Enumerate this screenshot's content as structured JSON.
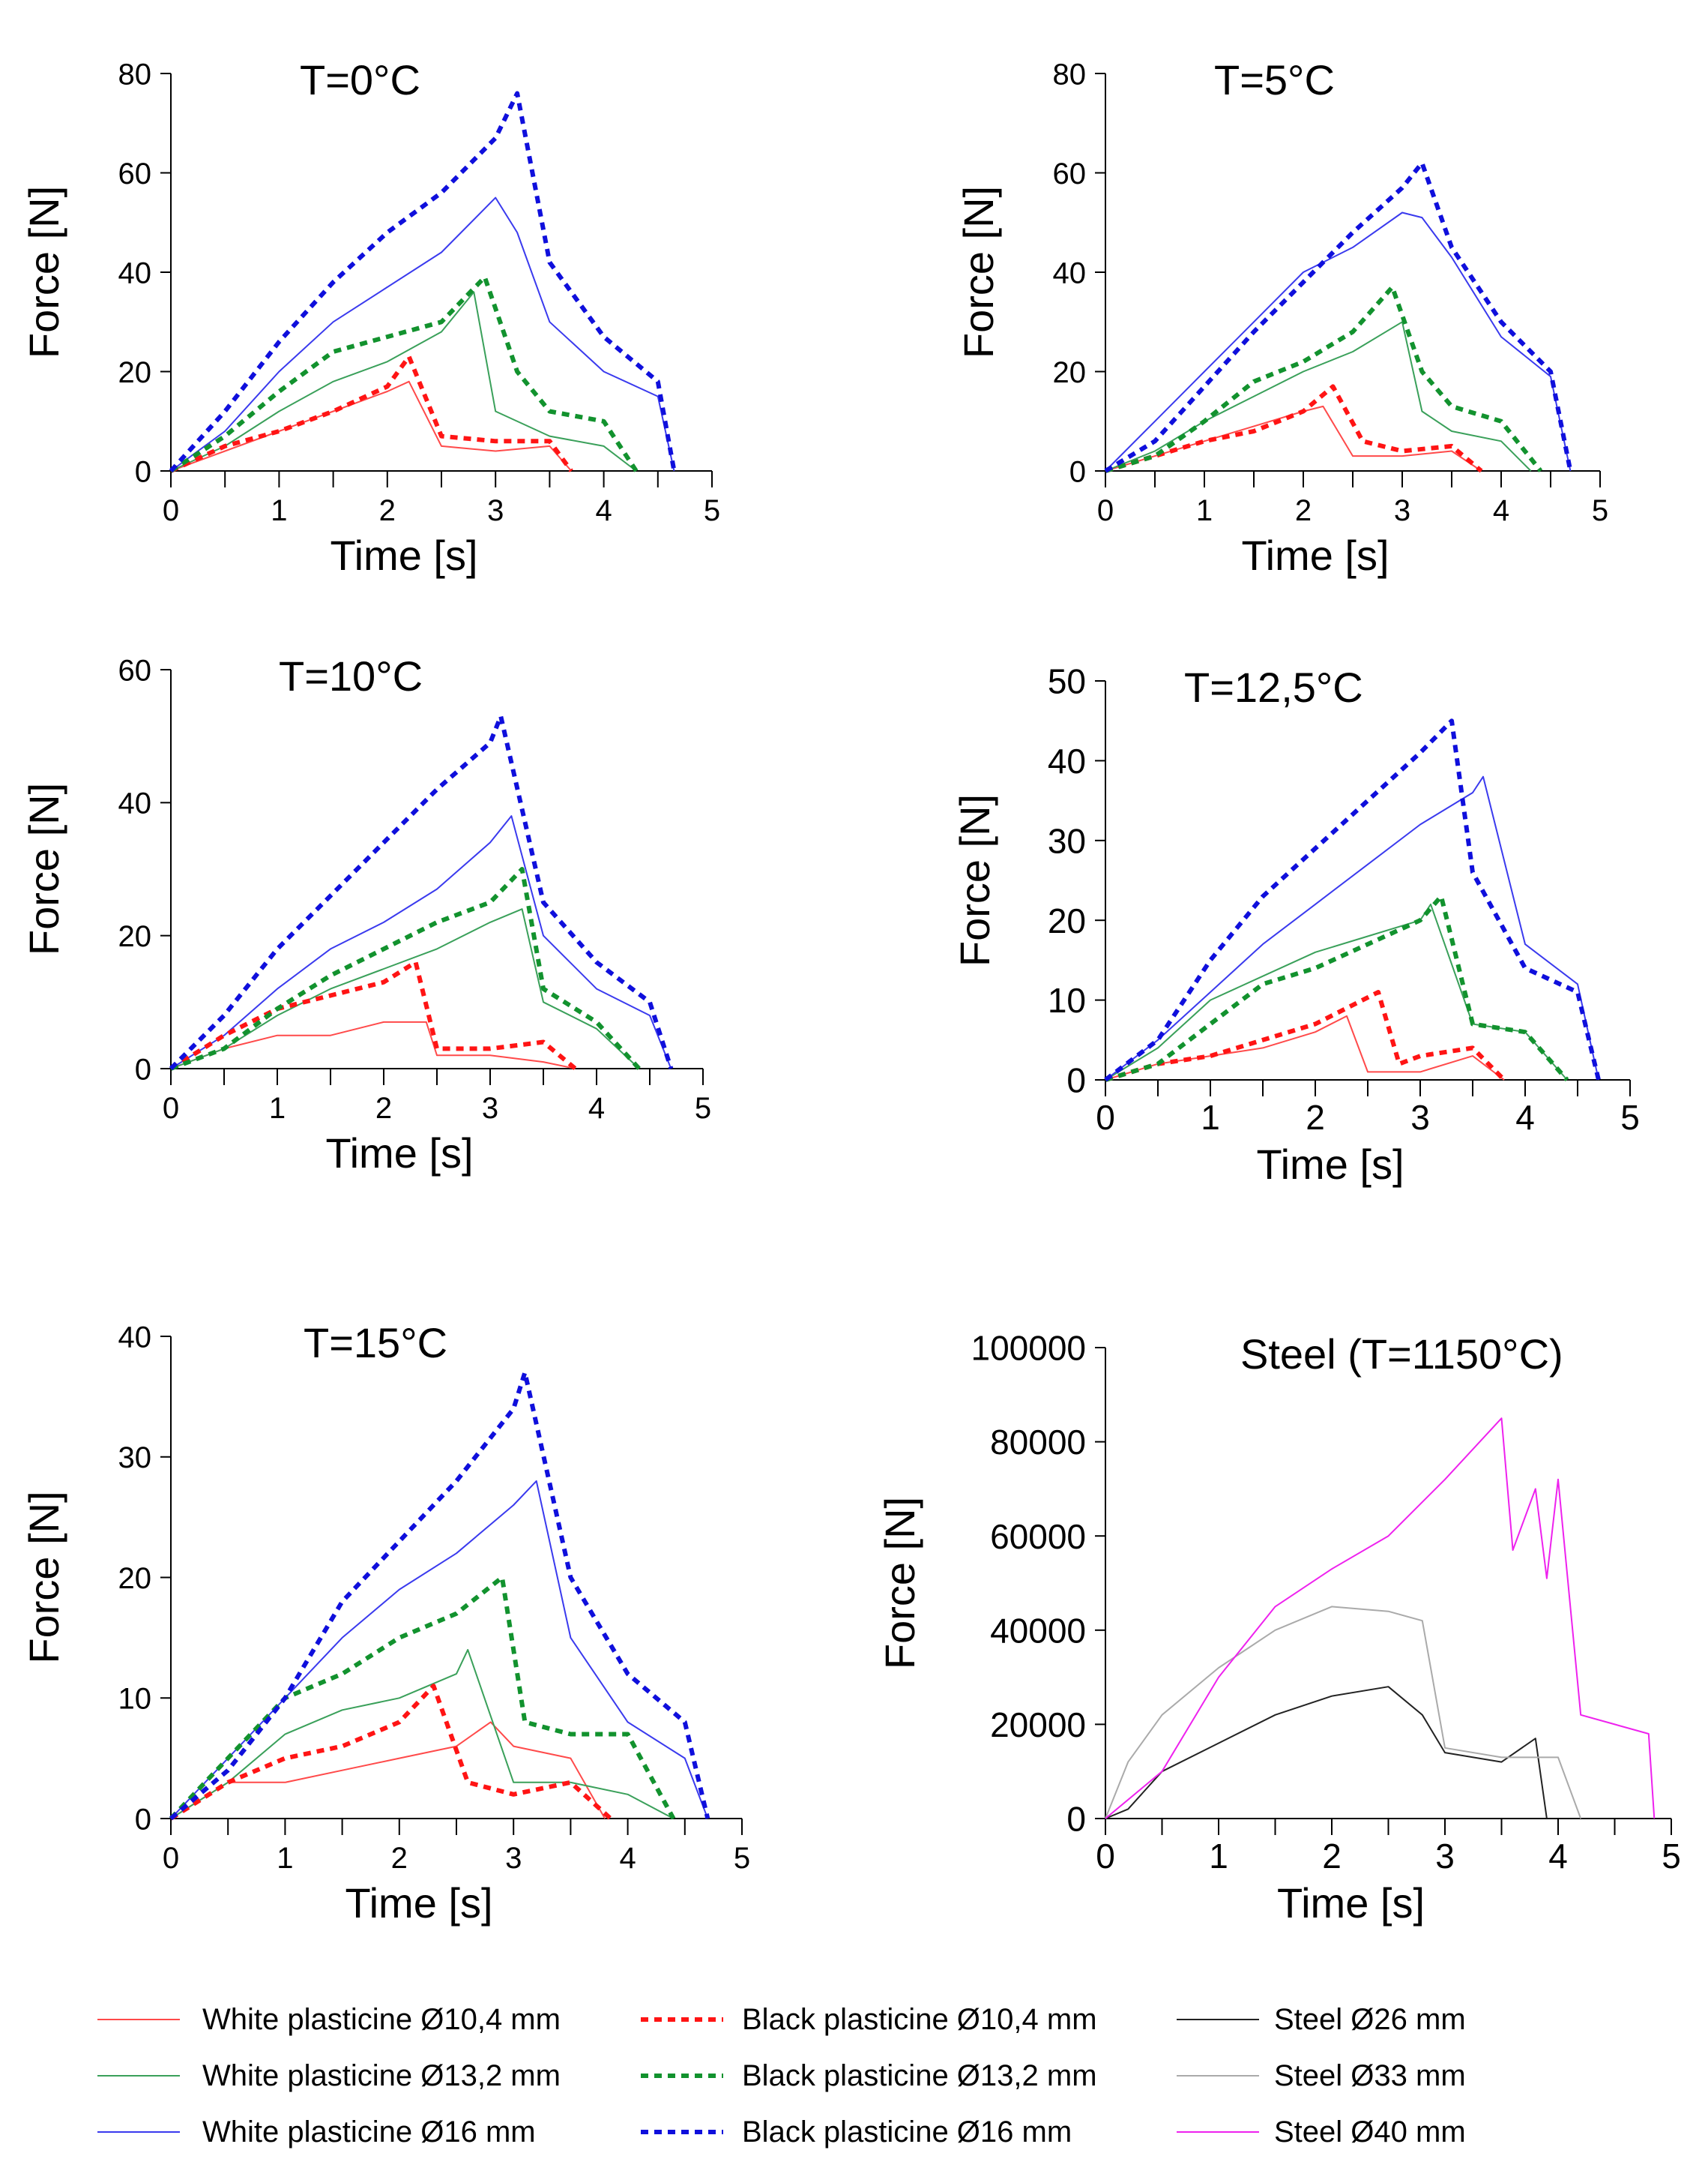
{
  "colors": {
    "white_10": "#ff4a4a",
    "white_13": "#3aa05a",
    "white_16": "#3a3aee",
    "black_10": "#ff1414",
    "black_13": "#12922e",
    "black_16": "#0f0fdc",
    "steel_26": "#222222",
    "steel_33": "#aaaaaa",
    "steel_40": "#ee22ee"
  },
  "legend": [
    {
      "id": "white_10",
      "label": "White plasticine Ø10,4 mm",
      "style": "solid"
    },
    {
      "id": "white_13",
      "label": "White plasticine Ø13,2 mm",
      "style": "solid"
    },
    {
      "id": "white_16",
      "label": "White plasticine Ø16 mm",
      "style": "solid"
    },
    {
      "id": "black_10",
      "label": "Black plasticine Ø10,4 mm",
      "style": "dashed"
    },
    {
      "id": "black_13",
      "label": "Black plasticine Ø13,2 mm",
      "style": "dashed"
    },
    {
      "id": "black_16",
      "label": "Black plasticine Ø16 mm",
      "style": "dashed"
    },
    {
      "id": "steel_26",
      "label": "Steel Ø26 mm",
      "style": "solid"
    },
    {
      "id": "steel_33",
      "label": "Steel Ø33 mm",
      "style": "solid"
    },
    {
      "id": "steel_40",
      "label": "Steel Ø40 mm",
      "style": "solid"
    }
  ],
  "chart_data": [
    {
      "type": "line",
      "title": "T=0°C",
      "xlabel": "Time [s]",
      "ylabel": "Force [N]",
      "xlim": [
        0,
        5
      ],
      "ylim": [
        0,
        80
      ],
      "xticks": [
        0,
        1,
        2,
        3,
        4,
        5
      ],
      "yticks": [
        0,
        20,
        40,
        60,
        80
      ],
      "series": [
        {
          "id": "white_10",
          "x": [
            0,
            0.5,
            1,
            1.5,
            2,
            2.2,
            2.5,
            3,
            3.5,
            3.7
          ],
          "y": [
            0,
            4,
            8,
            12,
            16,
            18,
            5,
            4,
            5,
            0
          ]
        },
        {
          "id": "white_13",
          "x": [
            0,
            0.5,
            1,
            1.5,
            2,
            2.5,
            2.8,
            3,
            3.5,
            4,
            4.3
          ],
          "y": [
            0,
            5,
            12,
            18,
            22,
            28,
            36,
            12,
            7,
            5,
            0
          ]
        },
        {
          "id": "white_16",
          "x": [
            0,
            0.5,
            1,
            1.5,
            2,
            2.5,
            3,
            3.2,
            3.5,
            4,
            4.5,
            4.65
          ],
          "y": [
            0,
            8,
            20,
            30,
            37,
            44,
            55,
            48,
            30,
            20,
            15,
            0
          ]
        },
        {
          "id": "black_10",
          "x": [
            0,
            0.5,
            1,
            1.5,
            2,
            2.2,
            2.5,
            3,
            3.5,
            3.7
          ],
          "y": [
            0,
            5,
            8,
            12,
            17,
            23,
            7,
            6,
            6,
            0
          ]
        },
        {
          "id": "black_13",
          "x": [
            0,
            0.5,
            1,
            1.5,
            2,
            2.5,
            2.9,
            3.2,
            3.5,
            4,
            4.3
          ],
          "y": [
            0,
            7,
            16,
            24,
            27,
            30,
            39,
            20,
            12,
            10,
            0
          ]
        },
        {
          "id": "black_16",
          "x": [
            0,
            0.5,
            1,
            1.5,
            2,
            2.5,
            3,
            3.2,
            3.5,
            4,
            4.5,
            4.65
          ],
          "y": [
            0,
            12,
            26,
            38,
            48,
            56,
            67,
            76,
            42,
            27,
            18,
            0
          ]
        }
      ]
    },
    {
      "type": "line",
      "title": "T=5°C",
      "xlabel": "Time [s]",
      "ylabel": "Force [N]",
      "xlim": [
        0,
        5
      ],
      "ylim": [
        0,
        80
      ],
      "xticks": [
        0,
        1,
        2,
        3,
        4,
        5
      ],
      "yticks": [
        0,
        20,
        40,
        60,
        80
      ],
      "series": [
        {
          "id": "white_10",
          "x": [
            0,
            0.5,
            1,
            1.5,
            2,
            2.2,
            2.5,
            3,
            3.5,
            3.8
          ],
          "y": [
            0,
            3,
            6,
            9,
            12,
            13,
            3,
            3,
            4,
            0
          ]
        },
        {
          "id": "white_13",
          "x": [
            0,
            0.5,
            1,
            1.5,
            2,
            2.5,
            3,
            3.2,
            3.5,
            4,
            4.3
          ],
          "y": [
            0,
            4,
            10,
            15,
            20,
            24,
            30,
            12,
            8,
            6,
            0
          ]
        },
        {
          "id": "white_16",
          "x": [
            0,
            0.5,
            1,
            1.5,
            2,
            2.5,
            3,
            3.2,
            3.5,
            4,
            4.5,
            4.7
          ],
          "y": [
            0,
            10,
            20,
            30,
            40,
            45,
            52,
            51,
            43,
            27,
            19,
            0
          ]
        },
        {
          "id": "black_10",
          "x": [
            0,
            0.5,
            1,
            1.5,
            2,
            2.3,
            2.6,
            3,
            3.5,
            3.8
          ],
          "y": [
            0,
            3,
            6,
            8,
            12,
            17,
            6,
            4,
            5,
            0
          ]
        },
        {
          "id": "black_13",
          "x": [
            0,
            0.5,
            1,
            1.5,
            2,
            2.5,
            2.9,
            3.2,
            3.5,
            4,
            4.4
          ],
          "y": [
            0,
            3,
            10,
            18,
            22,
            28,
            37,
            20,
            13,
            10,
            0
          ]
        },
        {
          "id": "black_16",
          "x": [
            0,
            0.5,
            1,
            1.5,
            2,
            2.5,
            3,
            3.2,
            3.5,
            4,
            4.5,
            4.7
          ],
          "y": [
            0,
            6,
            17,
            28,
            38,
            48,
            57,
            62,
            45,
            30,
            20,
            0
          ]
        }
      ]
    },
    {
      "type": "line",
      "title": "T=10°C",
      "xlabel": "Time [s]",
      "ylabel": "Force [N]",
      "xlim": [
        0,
        5
      ],
      "ylim": [
        0,
        60
      ],
      "xticks": [
        0,
        1,
        2,
        3,
        4,
        5
      ],
      "yticks": [
        0,
        20,
        40,
        60
      ],
      "series": [
        {
          "id": "white_10",
          "x": [
            0,
            0.5,
            1,
            1.5,
            2,
            2.4,
            2.5,
            3,
            3.5,
            3.8
          ],
          "y": [
            0,
            3,
            5,
            5,
            7,
            7,
            2,
            2,
            1,
            0
          ]
        },
        {
          "id": "white_13",
          "x": [
            0,
            0.5,
            1,
            1.5,
            2,
            2.5,
            3,
            3.3,
            3.5,
            4,
            4.4
          ],
          "y": [
            0,
            3,
            8,
            12,
            15,
            18,
            22,
            24,
            10,
            6,
            0
          ]
        },
        {
          "id": "white_16",
          "x": [
            0,
            0.5,
            1,
            1.5,
            2,
            2.5,
            3,
            3.2,
            3.5,
            4,
            4.5,
            4.7
          ],
          "y": [
            0,
            5,
            12,
            18,
            22,
            27,
            34,
            38,
            20,
            12,
            8,
            0
          ]
        },
        {
          "id": "black_10",
          "x": [
            0,
            0.5,
            1,
            1.5,
            2,
            2.3,
            2.5,
            3,
            3.5,
            3.8
          ],
          "y": [
            0,
            5,
            9,
            11,
            13,
            16,
            3,
            3,
            4,
            0
          ]
        },
        {
          "id": "black_13",
          "x": [
            0,
            0.5,
            1,
            1.5,
            2,
            2.5,
            3,
            3.3,
            3.5,
            4,
            4.4
          ],
          "y": [
            0,
            3,
            9,
            14,
            18,
            22,
            25,
            30,
            12,
            7,
            0
          ]
        },
        {
          "id": "black_16",
          "x": [
            0,
            0.5,
            1,
            1.5,
            2,
            2.5,
            3,
            3.1,
            3.5,
            4,
            4.5,
            4.7
          ],
          "y": [
            0,
            8,
            18,
            26,
            34,
            42,
            49,
            53,
            25,
            16,
            10,
            0
          ]
        }
      ]
    },
    {
      "type": "line",
      "title": "T=12,5°C",
      "xlabel": "Time [s]",
      "ylabel": "Force [N]",
      "xlim": [
        0,
        5
      ],
      "ylim": [
        0,
        50
      ],
      "xticks": [
        0,
        1,
        2,
        3,
        4,
        5
      ],
      "yticks": [
        0,
        10,
        20,
        30,
        40,
        50
      ],
      "series": [
        {
          "id": "white_10",
          "x": [
            0,
            0.5,
            1,
            1.5,
            2,
            2.3,
            2.5,
            3,
            3.5,
            3.8
          ],
          "y": [
            0,
            2,
            3,
            4,
            6,
            8,
            1,
            1,
            3,
            0
          ]
        },
        {
          "id": "white_13",
          "x": [
            0,
            0.5,
            1,
            1.5,
            2,
            2.5,
            3,
            3.1,
            3.5,
            4,
            4.4
          ],
          "y": [
            0,
            4,
            10,
            13,
            16,
            18,
            20,
            22,
            7,
            6,
            0
          ]
        },
        {
          "id": "white_16",
          "x": [
            0,
            0.5,
            1,
            1.5,
            2,
            2.5,
            3,
            3.5,
            3.6,
            4,
            4.5,
            4.7
          ],
          "y": [
            0,
            5,
            11,
            17,
            22,
            27,
            32,
            36,
            38,
            17,
            12,
            0
          ]
        },
        {
          "id": "black_10",
          "x": [
            0,
            0.5,
            1,
            1.5,
            2,
            2.6,
            2.8,
            3,
            3.5,
            3.8
          ],
          "y": [
            0,
            2,
            3,
            5,
            7,
            11,
            2,
            3,
            4,
            0
          ]
        },
        {
          "id": "black_13",
          "x": [
            0,
            0.5,
            1,
            1.5,
            2,
            2.5,
            3,
            3.2,
            3.5,
            4,
            4.4
          ],
          "y": [
            0,
            2,
            7,
            12,
            14,
            17,
            20,
            23,
            7,
            6,
            0
          ]
        },
        {
          "id": "black_16",
          "x": [
            0,
            0.5,
            1,
            1.5,
            2,
            2.5,
            3,
            3.3,
            3.5,
            4,
            4.5,
            4.7
          ],
          "y": [
            0,
            5,
            15,
            23,
            29,
            35,
            41,
            45,
            26,
            14,
            11,
            0
          ]
        }
      ]
    },
    {
      "type": "line",
      "title": "T=15°C",
      "xlabel": "Time [s]",
      "ylabel": "Force [N]",
      "xlim": [
        0,
        5
      ],
      "ylim": [
        0,
        40
      ],
      "xticks": [
        0,
        1,
        2,
        3,
        4,
        5
      ],
      "yticks": [
        0,
        10,
        20,
        30,
        40
      ],
      "series": [
        {
          "id": "white_10",
          "x": [
            0,
            0.5,
            1,
            1.5,
            2,
            2.5,
            2.8,
            3,
            3.5,
            3.8
          ],
          "y": [
            0,
            3,
            3,
            4,
            5,
            6,
            8,
            6,
            5,
            0
          ]
        },
        {
          "id": "white_13",
          "x": [
            0,
            0.5,
            1,
            1.5,
            2,
            2.5,
            2.6,
            3,
            3.5,
            4,
            4.4
          ],
          "y": [
            0,
            3,
            7,
            9,
            10,
            12,
            14,
            3,
            3,
            2,
            0
          ]
        },
        {
          "id": "white_16",
          "x": [
            0,
            0.5,
            1,
            1.5,
            2,
            2.5,
            3,
            3.2,
            3.5,
            4,
            4.5,
            4.7
          ],
          "y": [
            0,
            5,
            10,
            15,
            19,
            22,
            26,
            28,
            15,
            8,
            5,
            0
          ]
        },
        {
          "id": "black_10",
          "x": [
            0,
            0.5,
            1,
            1.5,
            2,
            2.3,
            2.6,
            3,
            3.5,
            3.85
          ],
          "y": [
            0,
            3,
            5,
            6,
            8,
            11,
            3,
            2,
            3,
            0
          ]
        },
        {
          "id": "black_13",
          "x": [
            0,
            0.5,
            1,
            1.5,
            2,
            2.5,
            2.9,
            3.1,
            3.5,
            4,
            4.4
          ],
          "y": [
            0,
            5,
            10,
            12,
            15,
            17,
            20,
            8,
            7,
            7,
            0
          ]
        },
        {
          "id": "black_16",
          "x": [
            0,
            0.5,
            1,
            1.5,
            2,
            2.5,
            3,
            3.1,
            3.5,
            4,
            4.5,
            4.7
          ],
          "y": [
            0,
            4,
            10,
            18,
            23,
            28,
            34,
            37,
            20,
            12,
            8,
            0
          ]
        }
      ]
    },
    {
      "type": "line",
      "title": "Steel (T=1150°C)",
      "xlabel": "Time [s]",
      "ylabel": "Force [N]",
      "xlim": [
        0,
        5
      ],
      "ylim": [
        0,
        100000
      ],
      "xticks": [
        0,
        1,
        2,
        3,
        4,
        5
      ],
      "yticks": [
        0,
        20000,
        40000,
        60000,
        80000,
        100000
      ],
      "series": [
        {
          "id": "steel_26",
          "x": [
            0,
            0.2,
            0.5,
            1,
            1.5,
            2,
            2.5,
            2.8,
            3,
            3.5,
            3.8,
            3.9
          ],
          "y": [
            0,
            2000,
            10000,
            16000,
            22000,
            26000,
            28000,
            22000,
            14000,
            12000,
            17000,
            0
          ]
        },
        {
          "id": "steel_33",
          "x": [
            0,
            0.2,
            0.5,
            1,
            1.5,
            2,
            2.5,
            2.8,
            3,
            3.5,
            4,
            4.2
          ],
          "y": [
            0,
            12000,
            22000,
            32000,
            40000,
            45000,
            44000,
            42000,
            15000,
            13000,
            13000,
            0
          ]
        },
        {
          "id": "steel_40",
          "x": [
            0,
            0.5,
            1,
            1.5,
            2,
            2.5,
            3,
            3.5,
            3.6,
            3.8,
            3.9,
            4,
            4.2,
            4.5,
            4.8,
            4.85
          ],
          "y": [
            0,
            10000,
            30000,
            45000,
            53000,
            60000,
            72000,
            85000,
            57000,
            70000,
            51000,
            72000,
            22000,
            20000,
            18000,
            0
          ]
        }
      ]
    }
  ]
}
